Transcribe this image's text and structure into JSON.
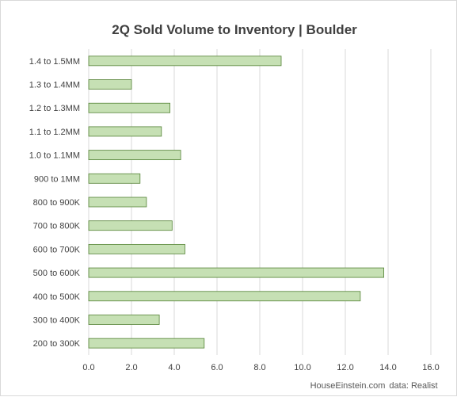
{
  "chart_data": {
    "type": "bar",
    "orientation": "horizontal",
    "title": "2Q Sold Volume to Inventory | Boulder",
    "categories": [
      "1.4 to 1.5MM",
      "1.3 to 1.4MM",
      "1.2 to 1.3MM",
      "1.1 to 1.2MM",
      "1.0 to 1.1MM",
      "900 to 1MM",
      "800 to 900K",
      "700 to 800K",
      "600 to 700K",
      "500 to 600K",
      "400 to 500K",
      "300 to 400K",
      "200 to 300K"
    ],
    "series": [
      {
        "values": [
          9.0,
          2.0,
          3.8,
          3.4,
          4.3,
          2.4,
          2.7,
          3.9,
          4.5,
          13.8,
          12.7,
          3.3,
          5.4
        ]
      }
    ],
    "xlim": [
      0,
      16
    ],
    "xticks": [
      "0.0",
      "2.0",
      "4.0",
      "6.0",
      "8.0",
      "10.0",
      "12.0",
      "14.0",
      "16.0"
    ],
    "grid": true,
    "bar_fill": "#c6e0b4",
    "bar_stroke": "#548235",
    "grid_color": "#d9d9d9"
  },
  "footer": {
    "website": "HouseEinstein.com",
    "source": "data: Realist"
  }
}
